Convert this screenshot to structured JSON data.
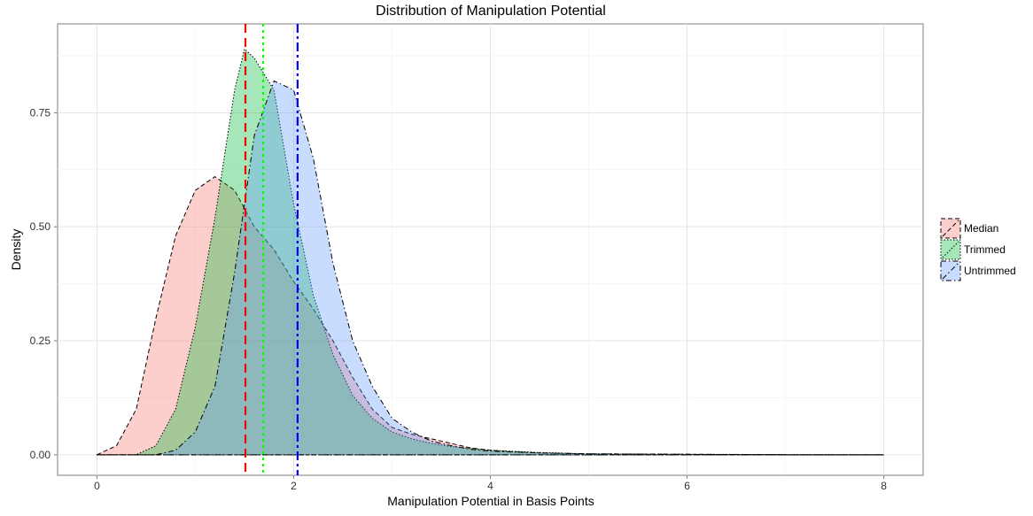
{
  "chart_data": {
    "type": "area",
    "title": "Distribution of Manipulation Potential",
    "xlabel": "Manipulation Potential in Basis Points",
    "ylabel": "Density",
    "xlim": [
      -0.4,
      8.4
    ],
    "ylim": [
      -0.045,
      0.945
    ],
    "x_ticks": [
      0,
      2,
      4,
      6,
      8
    ],
    "x_tick_labels": [
      "0",
      "2",
      "4",
      "6",
      "8"
    ],
    "y_ticks": [
      0.0,
      0.25,
      0.5,
      0.75
    ],
    "y_tick_labels": [
      "0.00",
      "0.25",
      "0.50",
      "0.75"
    ],
    "grid": true,
    "legend_position": "right",
    "series": [
      {
        "name": "Median",
        "color": "#f8766d",
        "line": "dashed",
        "x": [
          0,
          0.2,
          0.4,
          0.6,
          0.8,
          1.0,
          1.2,
          1.4,
          1.6,
          1.8,
          2.0,
          2.2,
          2.4,
          2.6,
          2.8,
          3.0,
          3.2,
          3.4,
          3.6,
          3.8,
          4.0,
          4.2,
          4.5,
          5.0,
          6.0,
          7.0,
          8.0
        ],
        "y": [
          0.0,
          0.02,
          0.1,
          0.3,
          0.48,
          0.58,
          0.61,
          0.58,
          0.5,
          0.45,
          0.38,
          0.32,
          0.25,
          0.17,
          0.1,
          0.06,
          0.045,
          0.035,
          0.025,
          0.015,
          0.01,
          0.007,
          0.004,
          0.002,
          0.001,
          0.0,
          0.0
        ]
      },
      {
        "name": "Trimmed",
        "color": "#00ba38",
        "line": "dotted",
        "x": [
          0,
          0.4,
          0.6,
          0.8,
          1.0,
          1.2,
          1.4,
          1.5,
          1.6,
          1.8,
          2.0,
          2.2,
          2.4,
          2.6,
          2.8,
          3.0,
          3.2,
          3.4,
          3.6,
          4.0,
          4.5,
          5.0,
          6.0,
          8.0
        ],
        "y": [
          0.0,
          0.0,
          0.02,
          0.1,
          0.28,
          0.52,
          0.8,
          0.89,
          0.87,
          0.8,
          0.55,
          0.35,
          0.22,
          0.13,
          0.08,
          0.05,
          0.035,
          0.025,
          0.018,
          0.01,
          0.005,
          0.002,
          0.001,
          0.0
        ]
      },
      {
        "name": "Untrimmed",
        "color": "#619cff",
        "line": "dashdot",
        "x": [
          0,
          0.6,
          0.8,
          1.0,
          1.2,
          1.4,
          1.6,
          1.8,
          2.0,
          2.2,
          2.4,
          2.6,
          2.8,
          3.0,
          3.2,
          3.4,
          3.6,
          3.8,
          4.0,
          4.5,
          5.0,
          6.0,
          7.0,
          8.0
        ],
        "y": [
          0.0,
          0.0,
          0.01,
          0.05,
          0.15,
          0.4,
          0.7,
          0.82,
          0.8,
          0.65,
          0.42,
          0.25,
          0.15,
          0.08,
          0.05,
          0.03,
          0.02,
          0.012,
          0.008,
          0.004,
          0.002,
          0.001,
          0.0,
          0.0
        ]
      }
    ],
    "vlines": [
      {
        "name": "Median",
        "x": 1.51,
        "color": "#ff0000",
        "line": "dashed"
      },
      {
        "name": "Trimmed",
        "x": 1.69,
        "color": "#00ff00",
        "line": "dotted"
      },
      {
        "name": "Untrimmed",
        "x": 2.04,
        "color": "#0000ff",
        "line": "dashdot"
      }
    ]
  }
}
